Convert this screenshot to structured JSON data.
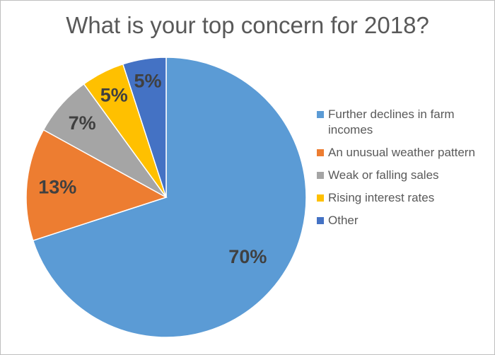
{
  "chart_data": {
    "type": "pie",
    "title": "What is your top concern for 2018?",
    "slices": [
      {
        "label": "Further declines in farm incomes",
        "value": 70,
        "display": "70%",
        "color": "#5b9bd5"
      },
      {
        "label": "An unusual weather pattern",
        "value": 13,
        "display": "13%",
        "color": "#ed7d31"
      },
      {
        "label": "Weak or falling sales",
        "value": 7,
        "display": "7%",
        "color": "#a5a5a5"
      },
      {
        "label": "Rising interest rates",
        "value": 5,
        "display": "5%",
        "color": "#ffc000"
      },
      {
        "label": "Other",
        "value": 5,
        "display": "5%",
        "color": "#4472c4"
      }
    ],
    "legend_position": "right",
    "start": "12 o'clock",
    "direction": "clockwise",
    "data_labels": "inside"
  }
}
